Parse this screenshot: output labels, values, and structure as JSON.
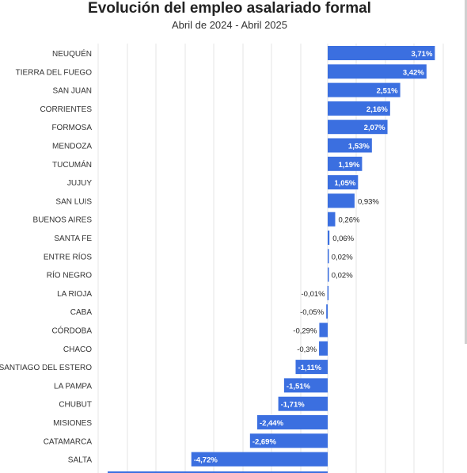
{
  "chart_data": {
    "type": "bar",
    "orientation": "horizontal",
    "title": "Evolución del empleo asalariado formal",
    "subtitle": "Abril de 2024 - Abril 2025",
    "xlabel": "",
    "ylabel": "",
    "xlim": [
      -7.4,
      3.9
    ],
    "grid": true,
    "legend": "none",
    "bar_color": "#3b6fe0",
    "categories": [
      "NEUQUÉN",
      "TIERRA DEL FUEGO",
      "SAN JUAN",
      "CORRIENTES",
      "FORMOSA",
      "MENDOZA",
      "TUCUMÁN",
      "JUJUY",
      "SAN LUIS",
      "BUENOS AIRES",
      "SANTA FE",
      "ENTRE RÍOS",
      "RÍO NEGRO",
      "LA RIOJA",
      "CABA",
      "CÓRDOBA",
      "CHACO",
      "SANTIAGO DEL ESTERO",
      "LA PAMPA",
      "CHUBUT",
      "MISIONES",
      "CATAMARCA",
      "SALTA"
    ],
    "values": [
      3.71,
      3.42,
      2.51,
      2.16,
      2.07,
      1.53,
      1.19,
      1.05,
      0.93,
      0.26,
      0.06,
      0.02,
      0.02,
      -0.01,
      -0.05,
      -0.29,
      -0.3,
      -1.11,
      -1.51,
      -1.71,
      -2.44,
      -2.69,
      -4.72
    ],
    "labels": [
      "3,71%",
      "3,42%",
      "2,51%",
      "2,16%",
      "2,07%",
      "1,53%",
      "1,19%",
      "1,05%",
      "0,93%",
      "0,26%",
      "0,06%",
      "0,02%",
      "0,02%",
      "-0,01%",
      "-0,05%",
      "-0,29%",
      "-0,3%",
      "-1,11%",
      "-1,51%",
      "-1,71%",
      "-2,44%",
      "-2,69%",
      "-4,72%"
    ]
  }
}
